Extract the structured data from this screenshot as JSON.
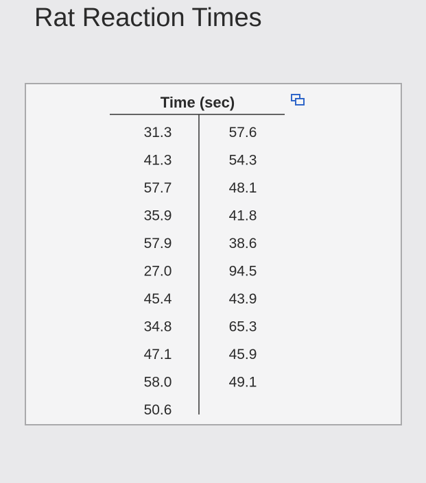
{
  "title": "Rat Reaction Times",
  "table": {
    "header": "Time (sec)",
    "columns": [
      [
        "31.3",
        "41.3",
        "57.7",
        "35.9",
        "57.9",
        "27.0",
        "45.4",
        "34.8",
        "47.1",
        "58.0",
        "50.6"
      ],
      [
        "57.6",
        "54.3",
        "48.1",
        "41.8",
        "38.6",
        "94.5",
        "43.9",
        "65.3",
        "45.9",
        "49.1"
      ]
    ]
  }
}
